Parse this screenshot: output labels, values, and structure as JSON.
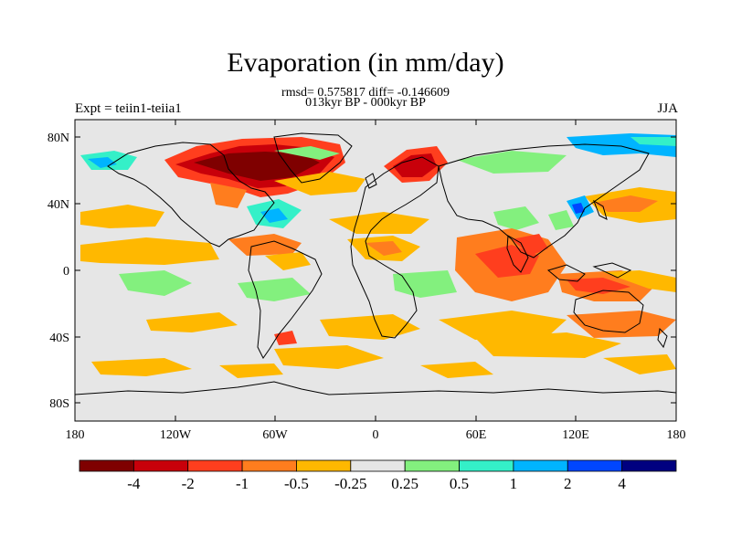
{
  "figure": {
    "title": "Evaporation (in mm/day)",
    "stats_line1": "rmsd= 0.575817 diff= -0.146609",
    "stats_line2": "013kyr BP - 000kyr BP",
    "left_label": "Expt = teiin1-teiia1",
    "right_label": "JJA"
  },
  "axes": {
    "x_ticks": [
      "180",
      "120W",
      "60W",
      "0",
      "60E",
      "120E",
      "180"
    ],
    "y_ticks": [
      "80N",
      "40N",
      "0",
      "40S",
      "80S"
    ]
  },
  "colorbar": {
    "colors": [
      "#7f0000",
      "#c8000a",
      "#ff3e1e",
      "#ff7d1e",
      "#ffb800",
      "#e6e6e6",
      "#83f07e",
      "#34f0c8",
      "#00b4ff",
      "#0046ff",
      "#000080"
    ],
    "labels": [
      "-4",
      "-2",
      "-1",
      "-0.5",
      "-0.25",
      "0.25",
      "0.5",
      "1",
      "2",
      "4"
    ]
  },
  "colors": {
    "background_field": "#e6e6e6",
    "coastline": "#000000"
  }
}
